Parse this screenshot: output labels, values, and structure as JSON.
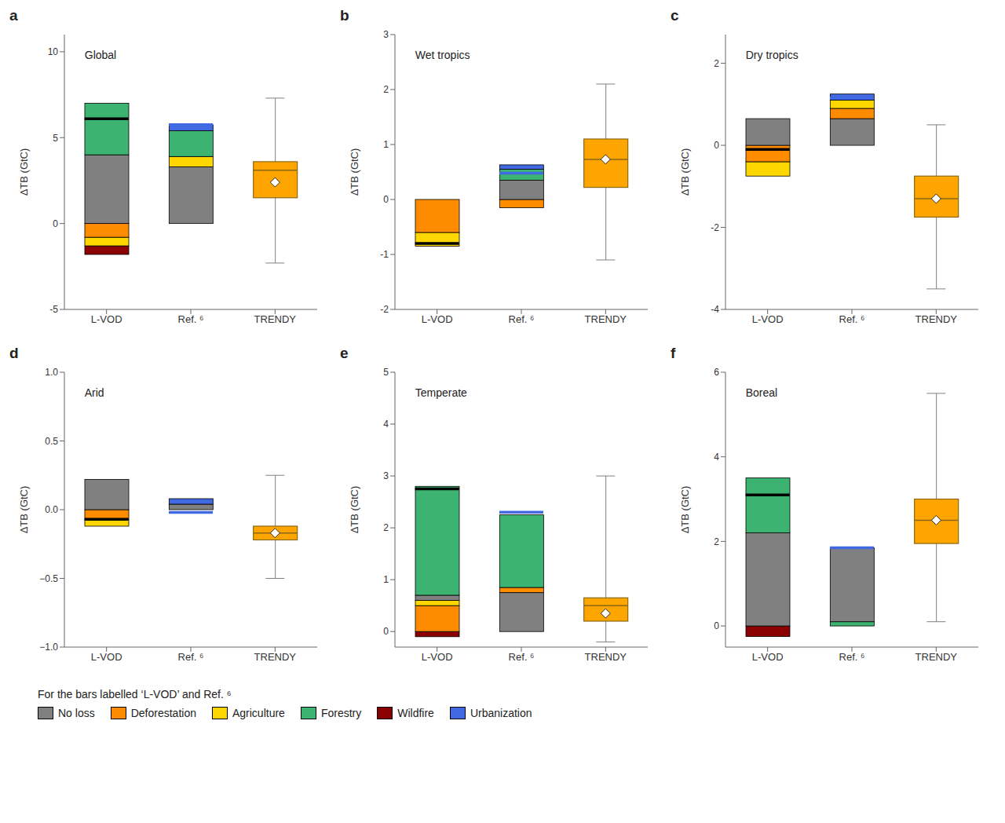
{
  "chart_data": [
    {
      "type": "bar",
      "stacked": true,
      "label": "a",
      "title": "Global",
      "ylabel": "ΔTB (GtC)",
      "categories": [
        "L-VOD",
        "Ref. ⁶",
        "TRENDY"
      ],
      "ylim": [
        -5,
        11
      ],
      "yticks": [
        -5,
        0,
        5,
        10
      ],
      "bars": [
        {
          "category": "L-VOD",
          "segments": [
            {
              "color": "#8B0000",
              "value": -0.5
            },
            {
              "color": "#FFD700",
              "value": -0.5
            },
            {
              "color": "#FF8C00",
              "value": -0.8
            },
            {
              "color": "#808080",
              "value": 4.0
            },
            {
              "color": "#3CB371",
              "value": 3.0
            }
          ],
          "total": 6.1,
          "total_color": "#000000"
        },
        {
          "category": "Ref. ⁶",
          "segments": [
            {
              "color": "#808080",
              "value": 3.3
            },
            {
              "color": "#FFD700",
              "value": 0.6
            },
            {
              "color": "#3CB371",
              "value": 1.5
            },
            {
              "color": "#4169E1",
              "value": 0.35
            }
          ],
          "total": 5.75,
          "total_color": "#4169E1"
        }
      ],
      "box": {
        "category": "TRENDY",
        "q1": 1.5,
        "median": 3.1,
        "q3": 3.6,
        "whisker_low": -2.3,
        "whisker_high": 7.3,
        "mean": 2.4,
        "color": "#FFA500",
        "edge_color": "#8B6914"
      }
    },
    {
      "type": "bar",
      "stacked": true,
      "label": "b",
      "title": "Wet tropics",
      "ylabel": "ΔTB (GtC)",
      "categories": [
        "L-VOD",
        "Ref. ⁶",
        "TRENDY"
      ],
      "ylim": [
        -2,
        3
      ],
      "yticks": [
        -2,
        -1,
        0,
        1,
        2,
        3
      ],
      "bars": [
        {
          "category": "L-VOD",
          "segments": [
            {
              "color": "#FFD700",
              "value": -0.25
            },
            {
              "color": "#FF8C00",
              "value": -0.6
            }
          ],
          "total": -0.8,
          "total_color": "#000000"
        },
        {
          "category": "Ref. ⁶",
          "segments": [
            {
              "color": "#FF8C00",
              "value": -0.15
            },
            {
              "color": "#808080",
              "value": 0.35
            },
            {
              "color": "#3CB371",
              "value": 0.2
            },
            {
              "color": "#4169E1",
              "value": 0.08
            }
          ],
          "total": 0.48,
          "total_color": "#4169E1"
        }
      ],
      "box": {
        "category": "TRENDY",
        "q1": 0.22,
        "median": 0.73,
        "q3": 1.1,
        "whisker_low": -1.1,
        "whisker_high": 2.1,
        "mean": 0.73,
        "color": "#FFA500",
        "edge_color": "#8B6914"
      }
    },
    {
      "type": "bar",
      "stacked": true,
      "label": "c",
      "title": "Dry tropics",
      "ylabel": "ΔTB (GtC)",
      "categories": [
        "L-VOD",
        "Ref. ⁶",
        "TRENDY"
      ],
      "ylim": [
        -4,
        2.7
      ],
      "yticks": [
        -4,
        -2,
        0,
        2
      ],
      "bars": [
        {
          "category": "L-VOD",
          "segments": [
            {
              "color": "#FFD700",
              "value": -0.35
            },
            {
              "color": "#FF8C00",
              "value": -0.4
            },
            {
              "color": "#808080",
              "value": 0.65
            }
          ],
          "total": -0.1,
          "total_color": "#000000"
        },
        {
          "category": "Ref. ⁶",
          "segments": [
            {
              "color": "#808080",
              "value": 0.65
            },
            {
              "color": "#FF8C00",
              "value": 0.25
            },
            {
              "color": "#FFD700",
              "value": 0.2
            },
            {
              "color": "#4169E1",
              "value": 0.15
            }
          ],
          "total": 1.15,
          "total_color": "#4169E1"
        }
      ],
      "box": {
        "category": "TRENDY",
        "q1": -1.75,
        "median": -1.3,
        "q3": -0.75,
        "whisker_low": -3.5,
        "whisker_high": 0.5,
        "mean": -1.3,
        "color": "#FFA500",
        "edge_color": "#8B6914"
      }
    },
    {
      "type": "bar",
      "stacked": true,
      "label": "d",
      "title": "Arid",
      "ylabel": "ΔTB (GtC)",
      "categories": [
        "L-VOD",
        "Ref. ⁶",
        "TRENDY"
      ],
      "ylim": [
        -1.0,
        1.0
      ],
      "yticks": [
        {
          "value": -1.0,
          "label": "−1.0"
        },
        {
          "value": -0.5,
          "label": "−0.5"
        },
        {
          "value": 0,
          "label": "0.0"
        },
        {
          "value": 0.5,
          "label": "0.5"
        },
        {
          "value": 1.0,
          "label": "1.0"
        }
      ],
      "bars": [
        {
          "category": "L-VOD",
          "segments": [
            {
              "color": "#FFD700",
              "value": -0.05
            },
            {
              "color": "#FF8C00",
              "value": -0.07
            },
            {
              "color": "#808080",
              "value": 0.22
            }
          ],
          "total": -0.07,
          "total_color": "#000000"
        },
        {
          "category": "Ref. ⁶",
          "segments": [
            {
              "color": "#808080",
              "value": 0.04
            },
            {
              "color": "#4169E1",
              "value": 0.04
            }
          ],
          "total": -0.02,
          "total_color": "#4169E1"
        }
      ],
      "box": {
        "category": "TRENDY",
        "q1": -0.22,
        "median": -0.17,
        "q3": -0.12,
        "whisker_low": -0.5,
        "whisker_high": 0.25,
        "mean": -0.17,
        "color": "#FFA500",
        "edge_color": "#8B6914"
      }
    },
    {
      "type": "bar",
      "stacked": true,
      "label": "e",
      "title": "Temperate",
      "ylabel": "ΔTB (GtC)",
      "categories": [
        "L-VOD",
        "Ref. ⁶",
        "TRENDY"
      ],
      "ylim": [
        -0.3,
        5
      ],
      "yticks": [
        0,
        1,
        2,
        3,
        4,
        5
      ],
      "bars": [
        {
          "category": "L-VOD",
          "segments": [
            {
              "color": "#8B0000",
              "value": -0.1
            },
            {
              "color": "#FF8C00",
              "value": 0.5
            },
            {
              "color": "#FFD700",
              "value": 0.1
            },
            {
              "color": "#808080",
              "value": 0.1
            },
            {
              "color": "#3CB371",
              "value": 2.1
            }
          ],
          "total": 2.75,
          "total_color": "#000000"
        },
        {
          "category": "Ref. ⁶",
          "segments": [
            {
              "color": "#808080",
              "value": 0.75
            },
            {
              "color": "#FF8C00",
              "value": 0.1
            },
            {
              "color": "#3CB371",
              "value": 1.4
            }
          ],
          "total": 2.3,
          "total_color": "#4169E1"
        }
      ],
      "box": {
        "category": "TRENDY",
        "q1": 0.2,
        "median": 0.5,
        "q3": 0.65,
        "whisker_low": -0.2,
        "whisker_high": 3.0,
        "mean": 0.35,
        "color": "#FFA500",
        "edge_color": "#8B6914"
      }
    },
    {
      "type": "bar",
      "stacked": true,
      "label": "f",
      "title": "Boreal",
      "ylabel": "ΔTB (GtC)",
      "categories": [
        "L-VOD",
        "Ref. ⁶",
        "TRENDY"
      ],
      "ylim": [
        -0.5,
        6
      ],
      "yticks": [
        0,
        2,
        4,
        6
      ],
      "bars": [
        {
          "category": "L-VOD",
          "segments": [
            {
              "color": "#8B0000",
              "value": -0.25
            },
            {
              "color": "#808080",
              "value": 2.2
            },
            {
              "color": "#3CB371",
              "value": 1.3
            }
          ],
          "total": 3.1,
          "total_color": "#000000"
        },
        {
          "category": "Ref. ⁶",
          "segments": [
            {
              "color": "#3CB371",
              "value": 0.1
            },
            {
              "color": "#808080",
              "value": 1.75
            },
            {
              "color": "#4169E1",
              "value": 0.0
            }
          ],
          "total": 1.85,
          "total_color": "#4169E1"
        }
      ],
      "box": {
        "category": "TRENDY",
        "q1": 1.95,
        "median": 2.5,
        "q3": 3.0,
        "whisker_low": 0.1,
        "whisker_high": 5.5,
        "mean": 2.5,
        "color": "#FFA500",
        "edge_color": "#8B6914"
      }
    }
  ],
  "series": [
    {
      "name": "No loss",
      "color": "#808080"
    },
    {
      "name": "Deforestation",
      "color": "#FF8C00"
    },
    {
      "name": "Agriculture",
      "color": "#FFD700"
    },
    {
      "name": "Forestry",
      "color": "#3CB371"
    },
    {
      "name": "Wildfire",
      "color": "#8B0000"
    },
    {
      "name": "Urbanization",
      "color": "#4169E1"
    }
  ],
  "legend": "lower left",
  "annotations": [
    "For the bars labelled ‘L-VOD’ and Ref. ⁶"
  ]
}
